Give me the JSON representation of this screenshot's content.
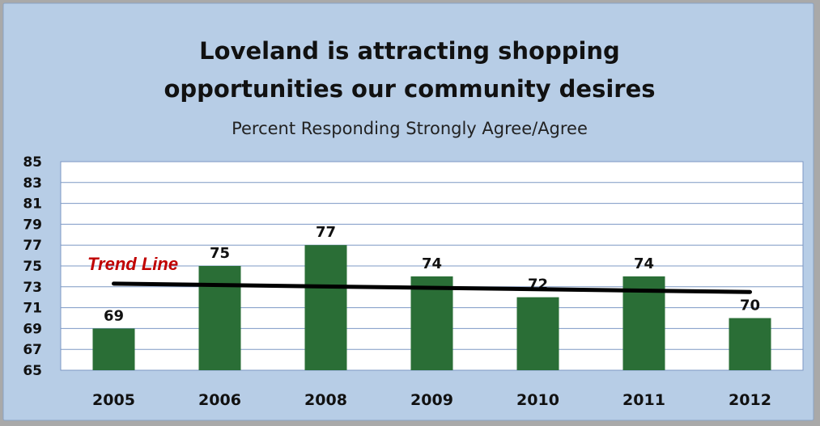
{
  "colors": {
    "panel_bg": "#b7cde6",
    "plot_bg": "#ffffff",
    "grid": "#7d98c4",
    "bar": "#2a6e36",
    "trend": "#000000",
    "trend_label": "#c00000",
    "outer_bg": "#a9a9a9"
  },
  "chart_data": {
    "type": "bar",
    "title_lines": [
      "Loveland is attracting shopping",
      "opportunities our community desires"
    ],
    "subtitle": "Percent Responding Strongly Agree/Agree",
    "categories": [
      "2005",
      "2006",
      "2008",
      "2009",
      "2010",
      "2011",
      "2012"
    ],
    "values": [
      69,
      75,
      77,
      74,
      72,
      74,
      70
    ],
    "data_labels": [
      "69",
      "75",
      "77",
      "74",
      "72",
      "74",
      "70"
    ],
    "ylim": [
      65,
      85
    ],
    "yticks": [
      "85",
      "83",
      "81",
      "79",
      "77",
      "75",
      "73",
      "71",
      "69",
      "67",
      "65"
    ],
    "grid": true,
    "trend_line": {
      "label": "Trend Line",
      "start": 73.3,
      "end": 72.5
    }
  }
}
